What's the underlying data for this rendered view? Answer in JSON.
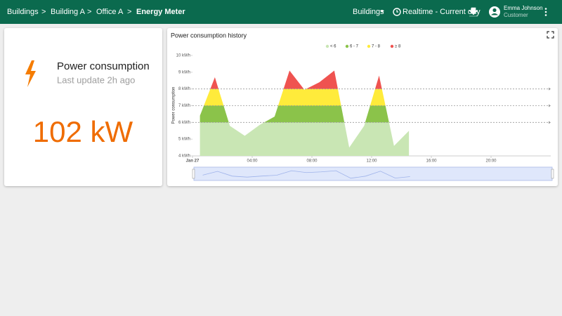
{
  "header": {
    "breadcrumbs": [
      "Buildings",
      "Building A",
      "Office A",
      "Energy Meter"
    ],
    "separator": ">",
    "dashboard_selector": "Buildings",
    "timewindow": "Realtime - Current day",
    "user_name": "Emma Johnson",
    "user_role": "Customer"
  },
  "value_card": {
    "title": "Power consumption",
    "subtitle": "Last update 2h ago",
    "value": "102 kW"
  },
  "chart_data": {
    "type": "area",
    "title": "Power consumption history",
    "y_label": "Power consumption",
    "x": [
      0.5,
      1.5,
      2.5,
      3.5,
      4.5,
      5.5,
      6.5,
      7.5,
      8.5,
      9.5,
      10.5,
      11.5,
      12.5,
      13.5,
      14.5
    ],
    "values": [
      6.4,
      8.7,
      5.8,
      5.2,
      5.85,
      6.35,
      9.1,
      7.95,
      8.4,
      9.1,
      4.5,
      5.8,
      8.8,
      4.6,
      5.5
    ],
    "thresholds": [
      6,
      7,
      8
    ],
    "levels": [
      {
        "name": "< 6",
        "color": "#c9e6b4"
      },
      {
        "name": "6 - 7",
        "color": "#8bc34a"
      },
      {
        "name": "7 - 8",
        "color": "#ffeb3b"
      },
      {
        "name": "≥ 8",
        "color": "#ef5350"
      }
    ],
    "xlim": [
      0,
      24
    ],
    "xticks": [
      {
        "value": 0,
        "label": "Jan 27"
      },
      {
        "value": 4,
        "label": "04:00"
      },
      {
        "value": 8,
        "label": "08:00"
      },
      {
        "value": 12,
        "label": "12:00"
      },
      {
        "value": 16,
        "label": "16:00"
      },
      {
        "value": 20,
        "label": "20:00"
      }
    ],
    "ylim": [
      4,
      10
    ],
    "yticks": [
      {
        "value": 4,
        "label": "4 kWh"
      },
      {
        "value": 5,
        "label": "5 kWh"
      },
      {
        "value": 6,
        "label": "6 kWh"
      },
      {
        "value": 7,
        "label": "7 kWh"
      },
      {
        "value": 8,
        "label": "8 kWh"
      },
      {
        "value": 9,
        "label": "9 kWh"
      },
      {
        "value": 10,
        "label": "10 kWh"
      }
    ]
  }
}
